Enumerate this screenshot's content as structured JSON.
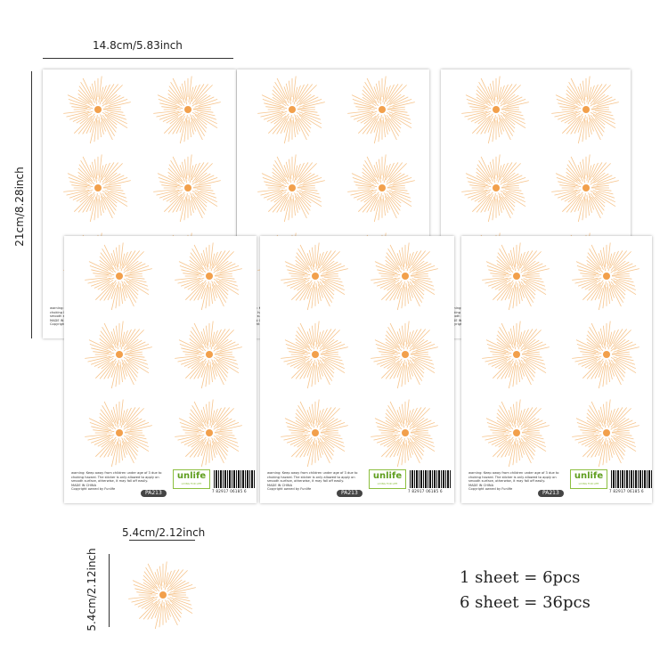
{
  "dimensions": {
    "sheet_width": "14.8cm/5.83inch",
    "sheet_height": "21cm/8.28inch",
    "sticker_width": "5.4cm/2.12inch",
    "sticker_height": "5.4cm/2.12inch"
  },
  "sheet_footer": {
    "warning": "warning: Keep away from children under age of 3 due to choking hazard. The sticker is only allowed to apply on smooth surface, otherwise, it may fall off easily.",
    "made_in": "MADE IN CHINA",
    "copyright": "Copyright owned by Funlife",
    "brand": "unlife",
    "brand_tagline": "LIVING FOR LIFE",
    "product_code": "PA213",
    "barcode_number": "7 82917 06185 6"
  },
  "quantities": {
    "line1": "1 sheet = 6pcs",
    "line2": "6 sheet = 36pcs"
  },
  "colors": {
    "ray": "#f6c48c",
    "center": "#f2a04c"
  }
}
